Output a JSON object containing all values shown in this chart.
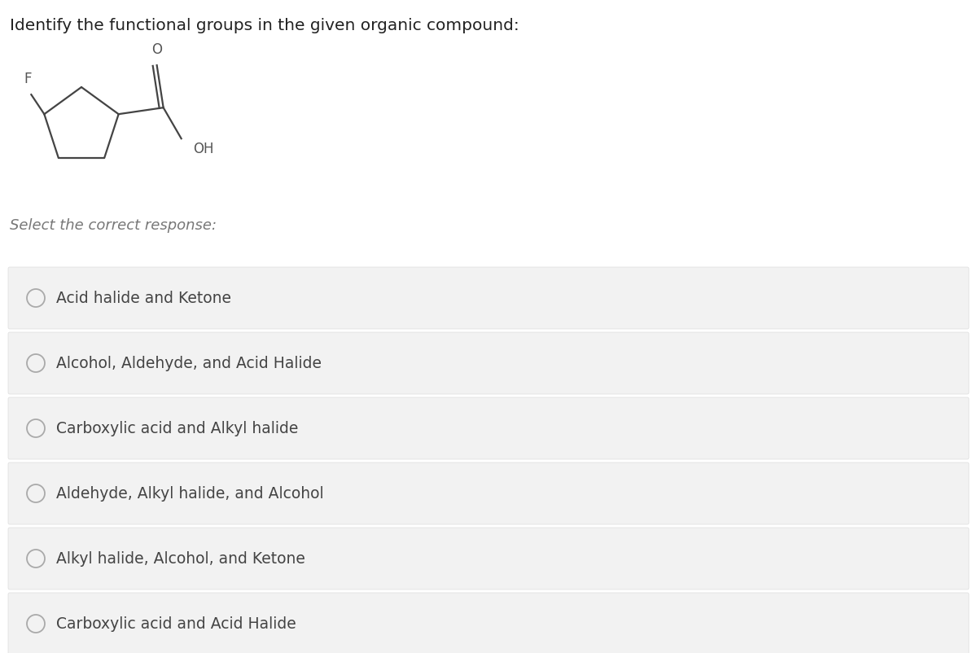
{
  "title": "Identify the functional groups in the given organic compound:",
  "title_fontsize": 14.5,
  "title_color": "#222222",
  "select_text": "Select the correct response:",
  "select_fontsize": 13,
  "select_color": "#777777",
  "options": [
    "Acid halide and Ketone",
    "Alcohol, Aldehyde, and Acid Halide",
    "Carboxylic acid and Alkyl halide",
    "Aldehyde, Alkyl halide, and Alcohol",
    "Alkyl halide, Alcohol, and Ketone",
    "Carboxylic acid and Acid Halide"
  ],
  "option_fontsize": 13.5,
  "option_text_color": "#444444",
  "option_bg_color": "#f2f2f2",
  "option_border_color": "#dddddd",
  "background_color": "#ffffff",
  "radio_color": "#aaaaaa",
  "molecule_line_color": "#444444",
  "molecule_label_color": "#444444",
  "F_label_color": "#555555",
  "O_label_color": "#555555",
  "OH_label_color": "#555555"
}
